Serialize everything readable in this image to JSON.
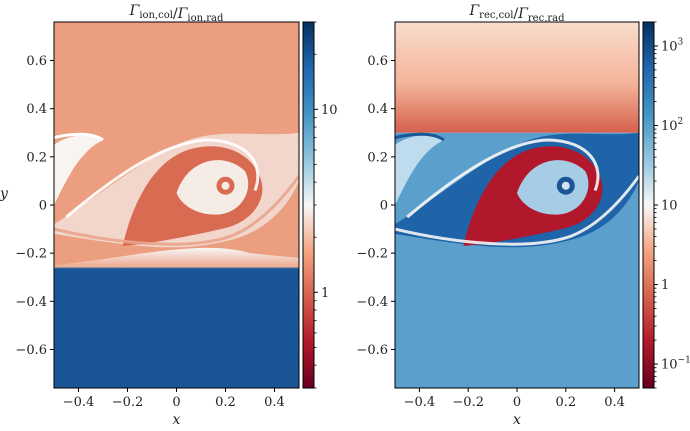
{
  "chart_data": [
    {
      "type": "heatmap",
      "title": {
        "main1": "Γ",
        "sub1": "ion,col",
        "slash": "/",
        "main2": "Γ",
        "sub2": "ion,rad"
      },
      "xlabel": "x",
      "ylabel": "y",
      "xlim": [
        -0.5,
        0.5
      ],
      "ylim": [
        -0.76,
        0.76
      ],
      "xticks": [
        -0.4,
        -0.2,
        0,
        0.2,
        0.4
      ],
      "xtick_labels": [
        "−0.4",
        "−0.2",
        "0",
        "0.2",
        "0.4"
      ],
      "yticks": [
        0.6,
        0.4,
        0.2,
        0,
        -0.2,
        -0.4,
        -0.6
      ],
      "ytick_labels": [
        "0.6",
        "0.4",
        "0.2",
        "0",
        "−0.2",
        "−0.4",
        "−0.6"
      ],
      "colorbar": {
        "scale": "log",
        "range": [
          0.3,
          30
        ],
        "ticks": [
          1,
          10
        ],
        "tick_labels": [
          "1",
          "10"
        ],
        "colormap": "RdBu"
      },
      "colors": {
        "upper": "#ec9e80",
        "lower": "#1a5596",
        "mixing": "#f7f7f7",
        "filament": "#d96b52"
      }
    },
    {
      "type": "heatmap",
      "title": {
        "main1": "Γ",
        "sub1": "rec,col",
        "slash": "/",
        "main2": "Γ",
        "sub2": "rec,rad"
      },
      "xlabel": "x",
      "ylabel": "",
      "xlim": [
        -0.5,
        0.5
      ],
      "ylim": [
        -0.76,
        0.76
      ],
      "xticks": [
        -0.4,
        -0.2,
        0,
        0.2,
        0.4
      ],
      "xtick_labels": [
        "−0.4",
        "−0.2",
        "0",
        "0.2",
        "0.4"
      ],
      "yticks": [
        0.6,
        0.4,
        0.2,
        0,
        -0.2,
        -0.4,
        -0.6
      ],
      "ytick_labels": [
        "0.6",
        "0.4",
        "0.2",
        "0",
        "−0.2",
        "−0.4",
        "−0.6"
      ],
      "colorbar": {
        "scale": "log",
        "range": [
          0.05,
          2000
        ],
        "ticks": [
          1000,
          100,
          10,
          1,
          0.1
        ],
        "tick_labels": [
          {
            "base": "10",
            "exp": "3"
          },
          {
            "base": "10",
            "exp": "2"
          },
          {
            "base": "10",
            "exp": ""
          },
          {
            "base": "1",
            "exp": ""
          },
          {
            "base": "10",
            "exp": "−1"
          }
        ],
        "colormap": "RdBu"
      },
      "colors": {
        "upper": "#f6d2c0",
        "lower": "#5b9fcd",
        "mixing": "#cfe3f1",
        "filament": "#1a5596",
        "core": "#b2182b"
      }
    }
  ]
}
